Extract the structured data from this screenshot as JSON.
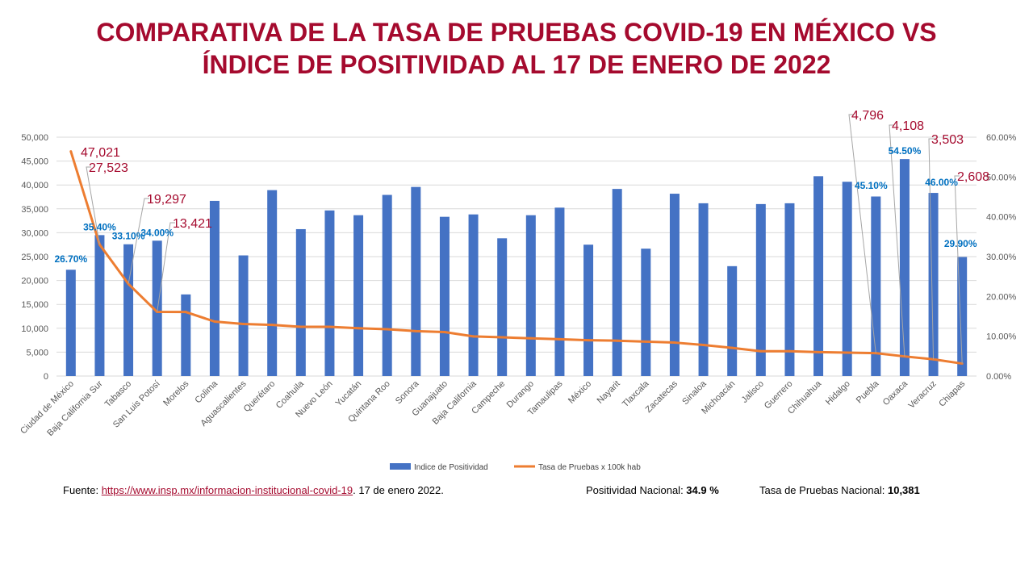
{
  "title": {
    "line1": "COMPARATIVA DE LA TASA DE PRUEBAS  COVID-19  EN MÉXICO VS",
    "line2": "ÍNDICE DE POSITIVIDAD  AL 17 DE ENERO  DE 2022"
  },
  "colors": {
    "title": "#a50a2e",
    "bars": "#4472c4",
    "line": "#ed7d31",
    "bar_label": "#0070c0",
    "line_label": "#a50a2e"
  },
  "chart_data": {
    "type": "bar+line",
    "categories": [
      "Ciudad de México",
      "Baja California Sur",
      "Tabasco",
      "San Luis Potosí",
      "Morelos",
      "Colima",
      "Aguascalientes",
      "Querétaro",
      "Coahuila",
      "Nuevo León",
      "Yucatán",
      "Quintana Roo",
      "Sonora",
      "Guanajuato",
      "Baja California",
      "Campeche",
      "Durango",
      "Tamaulipas",
      "México",
      "Nayarit",
      "Tlaxcala",
      "Zacatecas",
      "Sinaloa",
      "Michoacán",
      "Jalisco",
      "Guerrero",
      "Chihuahua",
      "Hidalgo",
      "Puebla",
      "Oaxaca",
      "Veracruz",
      "Chiapas"
    ],
    "series": [
      {
        "name": "Indice de Positividad",
        "type": "bar",
        "axis": "right",
        "values": [
          26.7,
          35.4,
          33.1,
          34.0,
          20.5,
          44.0,
          30.3,
          46.7,
          36.9,
          41.6,
          40.4,
          45.5,
          47.5,
          40.0,
          40.6,
          34.6,
          40.4,
          42.3,
          33.0,
          47.0,
          32.0,
          45.8,
          43.4,
          27.6,
          43.2,
          43.4,
          50.2,
          48.8,
          45.1,
          54.5,
          46.0,
          29.9
        ]
      },
      {
        "name": "Tasa de Pruebas x 100k hab",
        "type": "line",
        "axis": "left",
        "values": [
          47021,
          27523,
          19297,
          13421,
          13400,
          11400,
          10900,
          10700,
          10300,
          10300,
          10000,
          9800,
          9400,
          9200,
          8300,
          8100,
          7900,
          7700,
          7500,
          7400,
          7200,
          7000,
          6500,
          5900,
          5200,
          5200,
          5000,
          4900,
          4796,
          4108,
          3503,
          2608
        ]
      }
    ],
    "bar_labels": [
      {
        "index": 0,
        "text": "26.70%"
      },
      {
        "index": 1,
        "text": "35.40%"
      },
      {
        "index": 2,
        "text": "33.10%"
      },
      {
        "index": 3,
        "text": "34.00%"
      },
      {
        "index": 28,
        "text": "45.10%"
      },
      {
        "index": 29,
        "text": "54.50%"
      },
      {
        "index": 30,
        "text": "46.00%"
      },
      {
        "index": 31,
        "text": "29.90%"
      }
    ],
    "line_labels": [
      {
        "index": 0,
        "text": "47,021"
      },
      {
        "index": 1,
        "text": "27,523"
      },
      {
        "index": 2,
        "text": "19,297"
      },
      {
        "index": 3,
        "text": "13,421"
      },
      {
        "index": 28,
        "text": "4,796"
      },
      {
        "index": 29,
        "text": "4,108"
      },
      {
        "index": 30,
        "text": "3,503"
      },
      {
        "index": 31,
        "text": "2,608"
      }
    ],
    "left_axis": {
      "min": 0,
      "max": 50000,
      "ticks": [
        "0",
        "5,000",
        "10,000",
        "15,000",
        "20,000",
        "25,000",
        "30,000",
        "35,000",
        "40,000",
        "45,000",
        "50,000"
      ]
    },
    "right_axis": {
      "min": 0,
      "max": 60,
      "ticks": [
        "0.00%",
        "10.00%",
        "20.00%",
        "30.00%",
        "40.00%",
        "50.00%",
        "60.00%"
      ]
    },
    "grid": true,
    "legend_position": "bottom"
  },
  "footer": {
    "source_label": "Fuente: ",
    "source_link": "https://www.insp.mx/informacion-institucional-covid-19",
    "source_date": ".  17 de enero  2022.",
    "positividad_label": "Positividad Nacional: ",
    "positividad_value": "34.9",
    "positividad_unit": "  %",
    "tasa_label": "Tasa de Pruebas Nacional: ",
    "tasa_value": "10,381"
  }
}
